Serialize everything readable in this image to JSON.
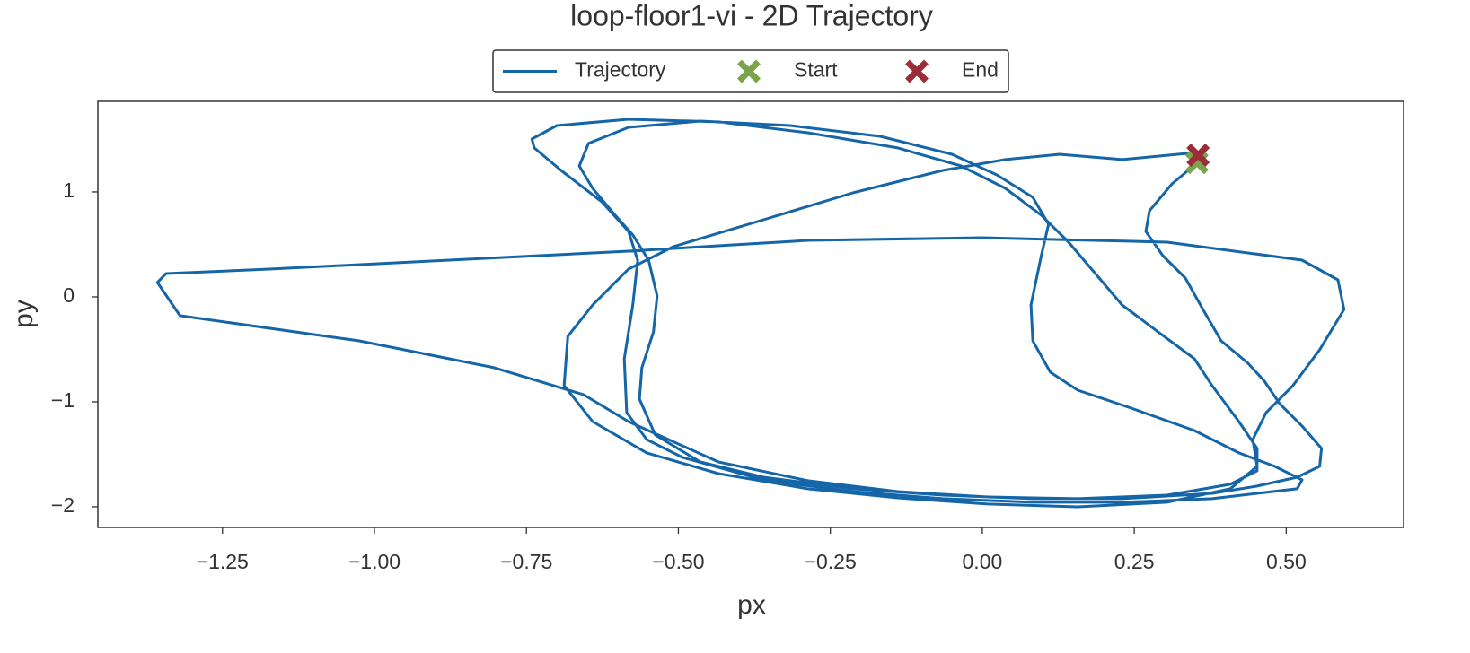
{
  "chart_data": {
    "type": "line",
    "title": "loop-floor1-vi - 2D Trajectory",
    "x_label": "px",
    "y_label": "py",
    "xlim": [
      -1.455,
      0.693
    ],
    "ylim": [
      -2.197,
      1.863
    ],
    "xticks": [
      {
        "value": -1.25,
        "label": "−1.25"
      },
      {
        "value": -1.0,
        "label": "−1.00"
      },
      {
        "value": -0.75,
        "label": "−0.75"
      },
      {
        "value": -0.5,
        "label": "−0.50"
      },
      {
        "value": -0.25,
        "label": "−0.25"
      },
      {
        "value": 0,
        "label": "0.00"
      },
      {
        "value": 0.25,
        "label": "0.25"
      },
      {
        "value": 0.5,
        "label": "0.50"
      }
    ],
    "yticks": [
      {
        "value": -2,
        "label": "−2"
      },
      {
        "value": -1,
        "label": "−1"
      },
      0,
      1
    ],
    "grid": false,
    "legend": "top",
    "series": [
      {
        "name": "Trajectory",
        "color": "#1466a8",
        "x": [
          0.353,
          0.312,
          0.275,
          0.269,
          0.297,
          0.334,
          0.363,
          0.393,
          0.437,
          0.464,
          0.489,
          0.526,
          0.558,
          0.555,
          0.518,
          0.452,
          0.378,
          0.23,
          0.083,
          -0.065,
          -0.213,
          -0.36,
          -0.464,
          -0.538,
          -0.564,
          -0.56,
          -0.541,
          -0.535,
          -0.549,
          -0.575,
          -0.604,
          -0.641,
          -0.663,
          -0.648,
          -0.582,
          -0.464,
          -0.316,
          -0.168,
          -0.05,
          0.024,
          0.083,
          0.109,
          0.097,
          0.08,
          0.083,
          0.112,
          0.157,
          0.245,
          0.349,
          0.422,
          0.481,
          0.526,
          0.518,
          0.452,
          0.378,
          0.23,
          0.083,
          -0.065,
          -0.213,
          -0.36,
          -0.493,
          -0.552,
          -0.585,
          -0.589,
          -0.575,
          -0.567,
          -0.582,
          -0.626,
          -0.693,
          -0.737,
          -0.741,
          -0.7,
          -0.582,
          -0.434,
          -0.287,
          -0.139,
          -0.035,
          0.038,
          0.097,
          0.142,
          0.186,
          0.23,
          0.289,
          0.349,
          0.378,
          0.422,
          0.452,
          0.452,
          0.408,
          0.304,
          0.157,
          0.009,
          -0.139,
          -0.287,
          -0.434,
          -0.582,
          -0.656,
          -0.803,
          -1.025,
          -1.32,
          -1.357,
          -1.343,
          -1.173,
          -0.877,
          -0.582,
          -0.287,
          0,
          0.304,
          0.526,
          0.585,
          0.595,
          0.555,
          0.511,
          0.467,
          0.445,
          0.452,
          0.408,
          0.304,
          0.157,
          0.009,
          -0.139,
          -0.287,
          -0.434,
          -0.552,
          -0.641,
          -0.688,
          -0.682,
          -0.641,
          -0.582,
          -0.508,
          -0.36,
          -0.213,
          -0.065,
          0.038,
          0.127,
          0.23,
          0.275,
          0.353
        ],
        "values": [
          1.274,
          1.077,
          0.821,
          0.624,
          0.393,
          0.179,
          -0.12,
          -0.419,
          -0.632,
          -0.803,
          -1.017,
          -1.231,
          -1.444,
          -1.615,
          -1.718,
          -1.803,
          -1.872,
          -1.923,
          -1.923,
          -1.889,
          -1.829,
          -1.718,
          -1.573,
          -1.316,
          -0.974,
          -0.675,
          -0.333,
          0.009,
          0.35,
          0.59,
          0.778,
          1.034,
          1.248,
          1.462,
          1.615,
          1.675,
          1.632,
          1.53,
          1.359,
          1.162,
          0.949,
          0.692,
          0.393,
          -0.077,
          -0.419,
          -0.718,
          -0.889,
          -1.06,
          -1.274,
          -1.487,
          -1.615,
          -1.744,
          -1.829,
          -1.872,
          -1.923,
          -1.957,
          -1.957,
          -1.923,
          -1.855,
          -1.744,
          -1.53,
          -1.359,
          -1.103,
          -0.59,
          -0.077,
          0.35,
          0.624,
          0.906,
          1.205,
          1.419,
          1.504,
          1.632,
          1.692,
          1.667,
          1.564,
          1.419,
          1.248,
          1.034,
          0.778,
          0.521,
          0.222,
          -0.077,
          -0.333,
          -0.59,
          -0.846,
          -1.188,
          -1.444,
          -1.658,
          -1.786,
          -1.889,
          -1.923,
          -1.906,
          -1.855,
          -1.752,
          -1.573,
          -1.188,
          -0.932,
          -0.675,
          -0.419,
          -0.179,
          0.137,
          0.222,
          0.265,
          0.35,
          0.436,
          0.538,
          0.564,
          0.521,
          0.35,
          0.162,
          -0.12,
          -0.504,
          -0.846,
          -1.103,
          -1.359,
          -1.615,
          -1.829,
          -1.957,
          -2.0,
          -1.974,
          -1.915,
          -1.829,
          -1.684,
          -1.487,
          -1.188,
          -0.846,
          -0.376,
          -0.077,
          0.265,
          0.479,
          0.735,
          0.991,
          1.205,
          1.308,
          1.359,
          1.308,
          1.333,
          1.376
        ]
      },
      {
        "name": "Start",
        "color": "#7ba34c",
        "marker": "X",
        "x": [
          0.353
        ],
        "values": [
          1.28
        ]
      },
      {
        "name": "End",
        "color": "#9b2d3b",
        "marker": "X",
        "x": [
          0.355
        ],
        "values": [
          1.35
        ]
      }
    ]
  }
}
